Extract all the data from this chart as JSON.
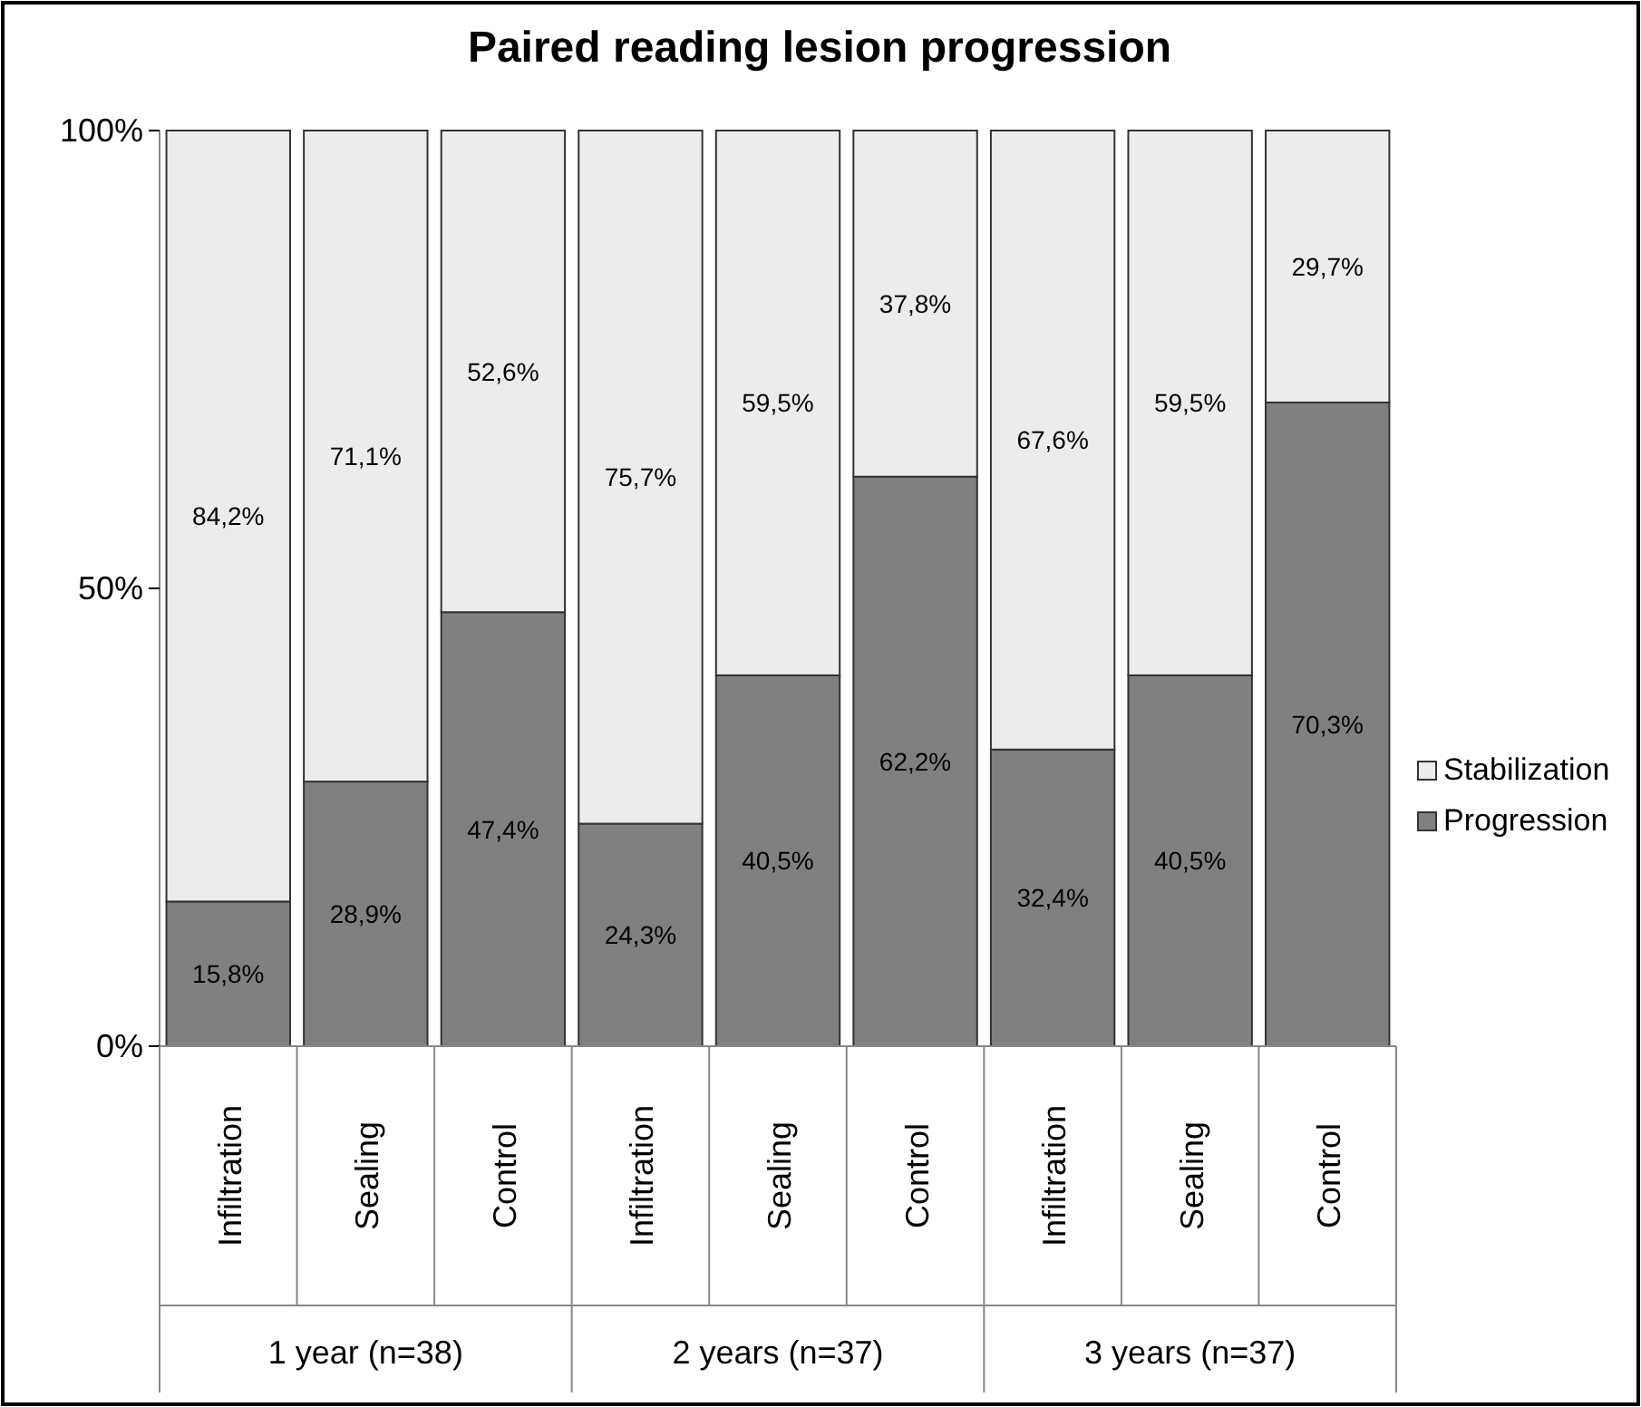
{
  "chart_data": {
    "type": "bar",
    "title": "Paired reading lesion progression",
    "stacked": true,
    "categories": [
      "Infiltration",
      "Sealing",
      "Control",
      "Infiltration",
      "Sealing",
      "Control",
      "Infiltration",
      "Sealing",
      "Control"
    ],
    "series": [
      {
        "name": "Progression",
        "color": "#808080",
        "values": [
          15.8,
          28.9,
          47.4,
          24.3,
          40.5,
          62.2,
          32.4,
          40.5,
          70.3
        ],
        "value_labels": [
          "15,8%",
          "28,9%",
          "47,4%",
          "24,3%",
          "40,5%",
          "62,2%",
          "32,4%",
          "40,5%",
          "70,3%"
        ]
      },
      {
        "name": "Stabilization",
        "color": "#ececec",
        "values": [
          84.2,
          71.1,
          52.6,
          75.7,
          59.5,
          37.8,
          67.6,
          59.5,
          29.7
        ],
        "value_labels": [
          "84,2%",
          "71,1%",
          "52,6%",
          "75,7%",
          "59,5%",
          "37,8%",
          "67,6%",
          "59,5%",
          "29,7%"
        ]
      }
    ],
    "annotations": [
      "1 year (n=38)",
      "2 years (n=37)",
      "3 years (n=37)"
    ],
    "ylim": [
      0,
      100
    ],
    "yticks": [
      {
        "value": 0,
        "label": "0%"
      },
      {
        "value": 50,
        "label": "50%"
      },
      {
        "value": 100,
        "label": "100%"
      }
    ],
    "grid": false,
    "legend": "right"
  }
}
